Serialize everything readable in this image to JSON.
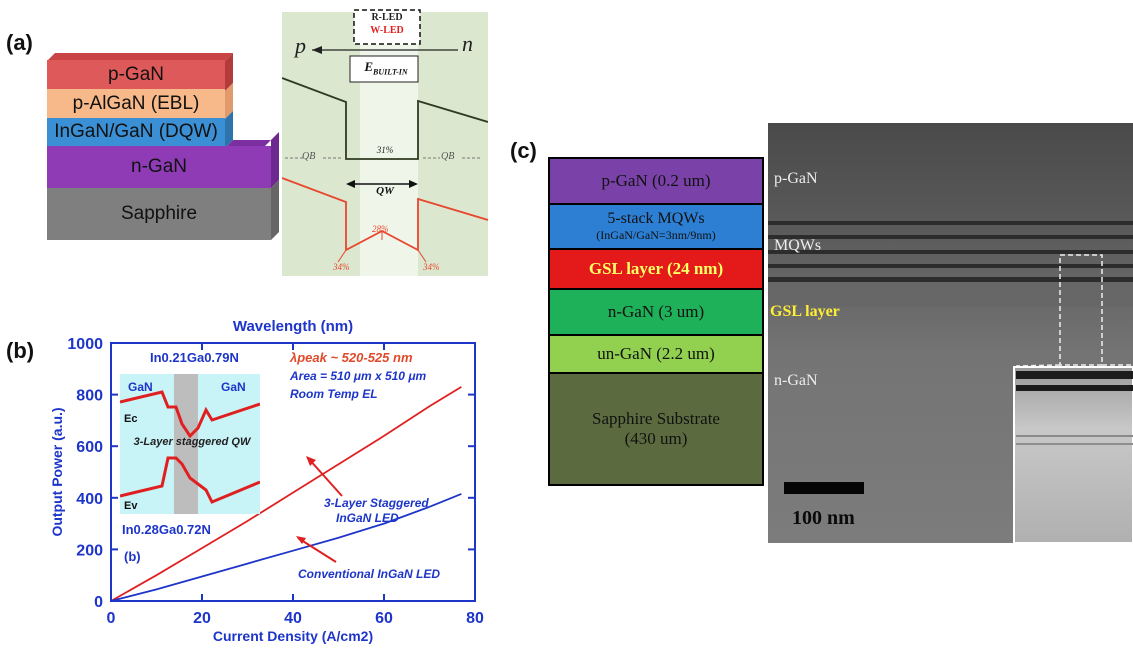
{
  "panel_a": {
    "label": "(a)",
    "layers": [
      "p-GaN",
      "p-AlGaN (EBL)",
      "InGaN/GaN (DQW)",
      "n-GaN",
      "Sapphire"
    ],
    "band": {
      "legend_r": "R-LED",
      "legend_w": "W-LED",
      "p": "p",
      "n": "n",
      "field_label": "E",
      "field_sub": "BUILT-IN",
      "pct_cb": "31%",
      "qb_left": "QB",
      "qb_right": "QB",
      "qw": "QW",
      "pct_vb_center": "28%",
      "pct_vb_left": "34%",
      "pct_vb_right": "34%"
    },
    "colors": {
      "pgan": "#de5a5a",
      "algan": "#f7b98a",
      "dqw": "#3b8fd4",
      "ngan": "#8e3bb5",
      "sapphire": "#7f7f7f",
      "band_bg": "#dbe8cf",
      "cb": "#2f3a22",
      "vb": "#e8472f"
    }
  },
  "panel_b": {
    "label": "(b)",
    "inset": {
      "well_formula": "In0.21Ga0.79N",
      "barrier_formula": "In0.28Ga0.72N",
      "gan_left": "GaN",
      "gan_right": "GaN",
      "ec": "Ec",
      "ev": "Ev",
      "caption": "3-Layer staggered QW"
    },
    "annotations": {
      "lambda": "λpeak ~ 520-525 nm",
      "area": "Area = 510 μm x 510 μm",
      "room": "Room Temp EL",
      "staggered_1": "3-Layer Staggered",
      "staggered_2": "InGaN LED",
      "conventional": "Conventional InGaN LED",
      "panel_tag": "(b)"
    }
  },
  "chart_data": {
    "type": "line",
    "title": "Wavelength (nm)",
    "xlabel": "Current Density (A/cm2)",
    "ylabel": "Output Power (a.u.)",
    "xlim": [
      0,
      80
    ],
    "ylim": [
      0,
      1000
    ],
    "xticks": [
      0,
      20,
      40,
      60,
      80
    ],
    "yticks": [
      0,
      200,
      400,
      600,
      800,
      1000
    ],
    "series": [
      {
        "name": "3-Layer Staggered InGaN LED",
        "color": "#e02020",
        "x": [
          0,
          10,
          20,
          30,
          40,
          50,
          60,
          70,
          77
        ],
        "y": [
          0,
          100,
          205,
          310,
          420,
          530,
          640,
          755,
          830
        ]
      },
      {
        "name": "Conventional InGaN LED",
        "color": "#1d35c9",
        "x": [
          0,
          10,
          20,
          30,
          40,
          50,
          60,
          70,
          77
        ],
        "y": [
          0,
          45,
          95,
          145,
          195,
          245,
          300,
          365,
          415
        ]
      }
    ]
  },
  "panel_c": {
    "label": "(c)",
    "layers": [
      {
        "line1": "p-GaN (0.2 um)",
        "line2": "",
        "bg": "#7a42a8",
        "fg": "#111111"
      },
      {
        "line1": "5-stack MQWs",
        "line2": "(InGaN/GaN=3nm/9nm)",
        "bg": "#2d7fd3",
        "fg": "#111111"
      },
      {
        "line1": "GSL layer (24 nm)",
        "line2": "",
        "bg": "#e41a1a",
        "fg": "#ffff66"
      },
      {
        "line1": "n-GaN (3 um)",
        "line2": "",
        "bg": "#1fb15a",
        "fg": "#111111"
      },
      {
        "line1": "un-GaN (2.2 um)",
        "line2": "",
        "bg": "#92d050",
        "fg": "#111111"
      },
      {
        "line1": "Sapphire Substrate",
        "line2": "(430 um)",
        "bg": "#5b6b3f",
        "fg": "#111111"
      }
    ],
    "tem_labels": {
      "pgan": "p-GaN",
      "mqws": "MQWs",
      "gsl": "GSL layer",
      "ngan": "n-GaN",
      "scale": "100 nm"
    }
  }
}
